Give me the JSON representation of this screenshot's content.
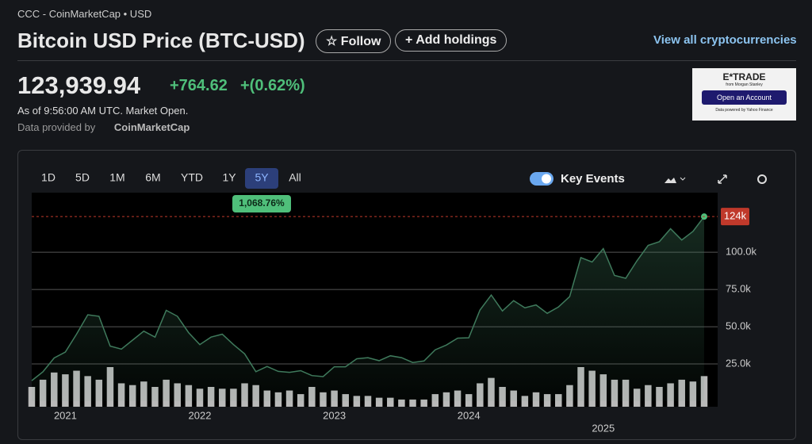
{
  "header": {
    "breadcrumb": "CCC - CoinMarketCap • USD",
    "title": "Bitcoin USD Price (BTC-USD)",
    "follow": "Follow",
    "add_holdings": "Add holdings",
    "view_all": "View all cryptocurrencies"
  },
  "quote": {
    "price": "123,939.94",
    "change": "+764.62",
    "change_percent": "+(0.62%)",
    "as_of": "As of 9:56:00 AM UTC. Market Open.",
    "provided_by": "Data provided by",
    "provider": "CoinMarketCap"
  },
  "ad": {
    "brand": "E*TRADE",
    "sub": "from Morgan Stanley",
    "button": "Open an Account",
    "note": "Data powered by Yahoo Finance"
  },
  "controls": {
    "ranges": [
      "1D",
      "5D",
      "1M",
      "6M",
      "YTD",
      "1Y",
      "5Y",
      "All"
    ],
    "active_range": "5Y",
    "key_events": "Key Events",
    "range_change": "1,068.76%"
  },
  "chart_data": {
    "type": "line",
    "categories": [
      null,
      null,
      null,
      "2021",
      null,
      null,
      null,
      null,
      null,
      null,
      null,
      null,
      null,
      null,
      null,
      "2022",
      null,
      null,
      null,
      null,
      null,
      null,
      null,
      null,
      null,
      null,
      null,
      "2023",
      null,
      null,
      null,
      null,
      null,
      null,
      null,
      null,
      null,
      null,
      null,
      "2024",
      null,
      null,
      null,
      null,
      null,
      null,
      null,
      null,
      null,
      null,
      null,
      "2025",
      null,
      null,
      null,
      null,
      null,
      null,
      null,
      null,
      null
    ],
    "series": [
      {
        "name": "BTC-USD",
        "color": "#3f7a5c",
        "values": [
          13800,
          19700,
          29000,
          33000,
          45000,
          58000,
          57000,
          37000,
          35000,
          41000,
          47000,
          43000,
          61000,
          57000,
          46000,
          38000,
          43000,
          45000,
          38000,
          31800,
          19800,
          23300,
          20000,
          19400,
          20500,
          17200,
          16500,
          23100,
          23100,
          28500,
          29200,
          27200,
          30500,
          29200,
          26000,
          27000,
          34500,
          37700,
          42300,
          42600,
          61200,
          71300,
          60600,
          67500,
          62700,
          64600,
          59000,
          63300,
          70200,
          96400,
          93400,
          102400,
          84400,
          82500,
          94200,
          104600,
          107100,
          115800,
          108200,
          114000,
          123939.94
        ]
      }
    ],
    "volume": {
      "color": "#b9b9b9",
      "values": [
        22,
        30,
        38,
        36,
        40,
        34,
        30,
        44,
        26,
        24,
        28,
        22,
        30,
        26,
        24,
        20,
        22,
        20,
        20,
        26,
        24,
        18,
        16,
        18,
        14,
        22,
        16,
        18,
        14,
        12,
        12,
        10,
        10,
        8,
        8,
        8,
        14,
        16,
        18,
        14,
        26,
        32,
        22,
        18,
        12,
        16,
        14,
        14,
        24,
        44,
        40,
        36,
        30,
        30,
        20,
        24,
        22,
        26,
        30,
        28,
        34
      ]
    },
    "ylim": [
      0,
      140000
    ],
    "yticks": [
      {
        "value": 25000,
        "label": "25.0k"
      },
      {
        "value": 50000,
        "label": "50.0k"
      },
      {
        "value": 75000,
        "label": "75.0k"
      },
      {
        "value": 100000,
        "label": "100.0k"
      }
    ],
    "last_price": {
      "value": 123939.94,
      "label": "124k"
    },
    "grid": true
  }
}
